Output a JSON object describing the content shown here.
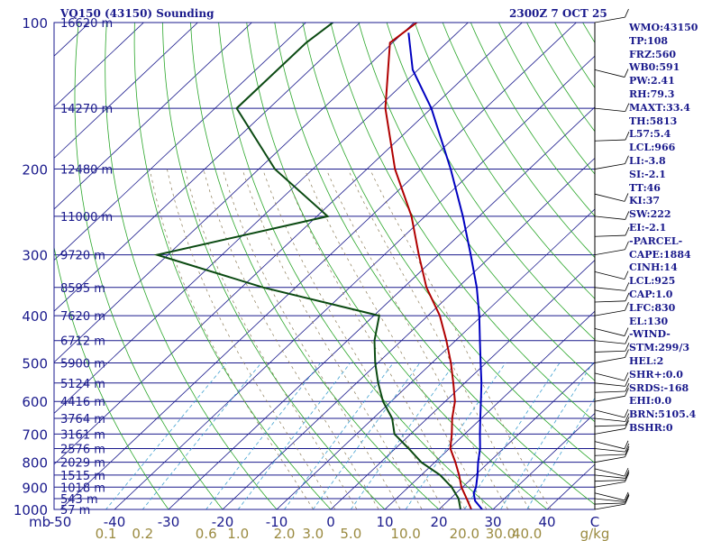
{
  "title": "VQ150 (43150) Sounding",
  "timestamp": "2300Z  7 OCT 25",
  "indices": [
    "WMO:43150",
    "TP:108",
    "FRZ:560",
    "WB0:591",
    "PW:2.41",
    "RH:79.3",
    "MAXT:33.4",
    "TH:5813",
    "L57:5.4",
    "LCL:966",
    "LI:-3.8",
    "SI:-2.1",
    "TT:46",
    "KI:37",
    "SW:222",
    "EI:-2.1",
    "-PARCEL-",
    "CAPE:1884",
    "CINH:14",
    "LCL:925",
    "CAP:1.0",
    "LFC:830",
    "EL:130",
    "-WIND-",
    "STM:299/3",
    "HEL:2",
    "SHR+:0.0",
    "SRDS:-168",
    "EHI:0.0",
    "BRN:5105.4",
    "BSHR:0"
  ],
  "colors": {
    "frame": "#1a1a8c",
    "temperature": "#b00000",
    "dewpoint": "#0b4a12",
    "parcel": "#0000c0",
    "dry_adiabat": "#2aa62a",
    "moist_adiabat": "#8a7a55",
    "mixing_ratio": "#40a0d0",
    "isotherm": "#1a1a8c",
    "mixing_label": "#9a8a40"
  },
  "chart_data": {
    "type": "line",
    "chart_kind": "Skew-T log-P sounding",
    "y_scale": "log",
    "ylim": [
      1000,
      100
    ],
    "xlim": [
      -50,
      50
    ],
    "xlabel": "C",
    "pressure_ticks": [
      "100",
      "200",
      "300",
      "400",
      "500",
      "600",
      "700",
      "800",
      "900",
      "1000"
    ],
    "pressure_units_label": "mb",
    "temperature_ticks": [
      "-50",
      "-40",
      "-30",
      "-20",
      "-10",
      "0",
      "10",
      "20",
      "30",
      "40"
    ],
    "mixing_ratio_ticks": [
      "0.1",
      "0.2",
      "0.6",
      "1.0",
      "2.0",
      "3.0",
      "5.0",
      "10.0",
      "20.0",
      "30.0",
      "40.0"
    ],
    "mixing_ratio_units": "g/kg",
    "height_levels": [
      {
        "p": 100,
        "label": "16620 m"
      },
      {
        "p": 150,
        "label": "14270 m"
      },
      {
        "p": 200,
        "label": "12480 m"
      },
      {
        "p": 250,
        "label": "11000 m"
      },
      {
        "p": 300,
        "label": "9720 m"
      },
      {
        "p": 350,
        "label": "8595 m"
      },
      {
        "p": 400,
        "label": "7620 m"
      },
      {
        "p": 450,
        "label": "6712 m"
      },
      {
        "p": 500,
        "label": "5900 m"
      },
      {
        "p": 550,
        "label": "5124 m"
      },
      {
        "p": 600,
        "label": "4416 m"
      },
      {
        "p": 650,
        "label": "3764 m"
      },
      {
        "p": 700,
        "label": "3161 m"
      },
      {
        "p": 750,
        "label": "2576 m"
      },
      {
        "p": 800,
        "label": "2029 m"
      },
      {
        "p": 850,
        "label": "1515 m"
      },
      {
        "p": 900,
        "label": "1018 m"
      },
      {
        "p": 950,
        "label": "543 m"
      },
      {
        "p": 1000,
        "label": "57 m"
      }
    ],
    "series": [
      {
        "id": "temperature",
        "points": [
          [
            1000,
            26
          ],
          [
            950,
            23
          ],
          [
            900,
            19.8
          ],
          [
            850,
            17
          ],
          [
            800,
            13.8
          ],
          [
            750,
            10.2
          ],
          [
            700,
            7.6
          ],
          [
            650,
            4.6
          ],
          [
            600,
            1.8
          ],
          [
            550,
            -2.1
          ],
          [
            500,
            -6.5
          ],
          [
            450,
            -11.7
          ],
          [
            400,
            -17.8
          ],
          [
            350,
            -25.8
          ],
          [
            300,
            -33.6
          ],
          [
            250,
            -42.5
          ],
          [
            200,
            -54.8
          ],
          [
            150,
            -68.5
          ],
          [
            110,
            -80.5
          ],
          [
            100,
            -79.5
          ]
        ]
      },
      {
        "id": "dewpoint",
        "points": [
          [
            1000,
            24
          ],
          [
            950,
            21.5
          ],
          [
            900,
            18
          ],
          [
            850,
            13.5
          ],
          [
            800,
            7.5
          ],
          [
            750,
            2.5
          ],
          [
            700,
            -3
          ],
          [
            650,
            -6.5
          ],
          [
            600,
            -11.5
          ],
          [
            550,
            -16
          ],
          [
            500,
            -20.5
          ],
          [
            450,
            -25
          ],
          [
            400,
            -29
          ],
          [
            350,
            -56
          ],
          [
            300,
            -82
          ],
          [
            250,
            -58
          ],
          [
            200,
            -77
          ],
          [
            150,
            -96
          ],
          [
            110,
            -96
          ],
          [
            100,
            -95
          ]
        ]
      },
      {
        "id": "parcel",
        "points": [
          [
            1000,
            28
          ],
          [
            960,
            25
          ],
          [
            925,
            23.2
          ],
          [
            900,
            22.5
          ],
          [
            850,
            20.4
          ],
          [
            800,
            18
          ],
          [
            750,
            15.7
          ],
          [
            700,
            12.8
          ],
          [
            650,
            9.8
          ],
          [
            600,
            6.6
          ],
          [
            550,
            3.1
          ],
          [
            500,
            -1
          ],
          [
            450,
            -5.5
          ],
          [
            400,
            -10.5
          ],
          [
            350,
            -16.5
          ],
          [
            300,
            -24
          ],
          [
            250,
            -33
          ],
          [
            200,
            -44.5
          ],
          [
            150,
            -60
          ],
          [
            125,
            -71
          ],
          [
            105,
            -79
          ]
        ]
      }
    ],
    "wind_barbs_levels": [
      "1000",
      "975",
      "950",
      "925",
      "900",
      "875",
      "850",
      "825",
      "800",
      "775",
      "750",
      "725",
      "700",
      "675",
      "650",
      "625",
      "600",
      "575",
      "550",
      "525",
      "500",
      "475",
      "450",
      "425",
      "400",
      "375",
      "350",
      "325",
      "300",
      "275",
      "250",
      "225",
      "200",
      "175",
      "150",
      "125",
      "100"
    ]
  }
}
